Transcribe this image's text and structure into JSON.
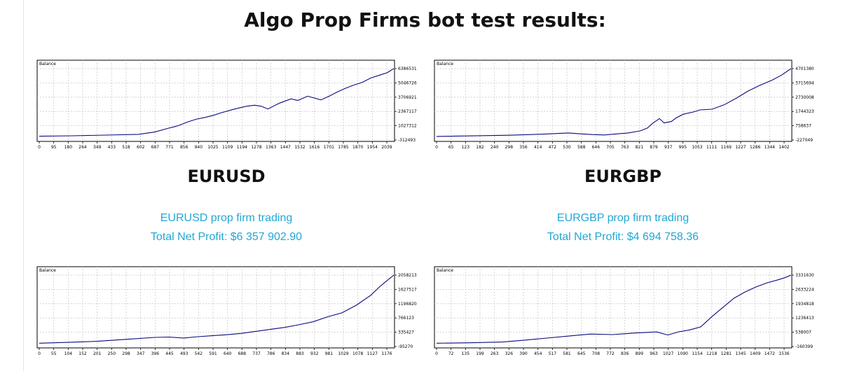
{
  "page": {
    "title": "Algo Prop Firms bot test results:"
  },
  "sections": [
    {
      "pair": "EURUSD",
      "line1": "EURUSD prop firm trading",
      "line2": "Total Net Profit: $6 357 902.90"
    },
    {
      "pair": "EURGBP",
      "line1": "EURGBP prop firm trading",
      "line2": "Total Net Profit: $4 694 758.36"
    }
  ],
  "colors": {
    "line": "#0a0a80",
    "accent_text": "#22a7d6",
    "grid": "#c9c9c9"
  },
  "chart_data": [
    {
      "type": "line",
      "title": "Balance",
      "x_ticks": [
        "0",
        "95",
        "180",
        "264",
        "349",
        "433",
        "518",
        "602",
        "687",
        "771",
        "856",
        "940",
        "1025",
        "1109",
        "1194",
        "1278",
        "1363",
        "1447",
        "1532",
        "1616",
        "1701",
        "1785",
        "1870",
        "1954",
        "2039"
      ],
      "y_ticks": [
        "6386531",
        "5046726",
        "3706921",
        "2367117",
        "1027312",
        "-312493"
      ],
      "ylim": [
        -312493,
        6386531
      ],
      "xlim": [
        0,
        2140
      ],
      "series": [
        {
          "x": [
            0,
            200,
            400,
            600,
            700,
            780,
            820,
            850,
            900,
            950,
            1000,
            1050,
            1100,
            1180,
            1250,
            1300,
            1340,
            1380,
            1450,
            1520,
            1560,
            1620,
            1700,
            1750,
            1800,
            1850,
            1900,
            1950,
            2000,
            2050,
            2100,
            2140
          ],
          "values": [
            40000,
            80000,
            150000,
            220000,
            450000,
            800000,
            950000,
            1100000,
            1400000,
            1650000,
            1800000,
            2000000,
            2250000,
            2600000,
            2850000,
            2950000,
            2850000,
            2600000,
            3150000,
            3550000,
            3400000,
            3800000,
            3450000,
            3800000,
            4200000,
            4550000,
            4850000,
            5100000,
            5500000,
            5750000,
            6000000,
            6386531
          ]
        }
      ],
      "grid": true
    },
    {
      "type": "line",
      "title": "Balance",
      "x_ticks": [
        "0",
        "65",
        "123",
        "182",
        "240",
        "298",
        "356",
        "414",
        "472",
        "530",
        "588",
        "646",
        "705",
        "763",
        "821",
        "879",
        "937",
        "995",
        "1053",
        "1111",
        "1169",
        "1227",
        "1286",
        "1344",
        "1402"
      ],
      "y_ticks": [
        "4701380",
        "3715694",
        "2730008",
        "1744323",
        "758637",
        "-227049"
      ],
      "ylim": [
        -227049,
        4701380
      ],
      "xlim": [
        0,
        1480
      ],
      "series": [
        {
          "x": [
            0,
            150,
            300,
            450,
            550,
            600,
            650,
            700,
            800,
            850,
            880,
            900,
            930,
            950,
            980,
            1000,
            1030,
            1070,
            1100,
            1150,
            1200,
            1250,
            1300,
            1350,
            1400,
            1440,
            1480
          ],
          "values": [
            20000,
            60000,
            100000,
            180000,
            260000,
            200000,
            150000,
            120000,
            260000,
            400000,
            600000,
            900000,
            1250000,
            950000,
            1050000,
            1300000,
            1550000,
            1700000,
            1850000,
            1900000,
            2200000,
            2650000,
            3150000,
            3550000,
            3900000,
            4250000,
            4701380
          ]
        }
      ],
      "grid": true
    },
    {
      "type": "line",
      "title": "Balance",
      "x_ticks": [
        "0",
        "55",
        "104",
        "152",
        "201",
        "250",
        "298",
        "347",
        "396",
        "445",
        "493",
        "542",
        "591",
        "640",
        "688",
        "737",
        "786",
        "834",
        "883",
        "932",
        "981",
        "1029",
        "1078",
        "1127",
        "1176"
      ],
      "y_ticks": [
        "2058213",
        "1627517",
        "1196820",
        "766123",
        "335427",
        "-95270"
      ],
      "ylim": [
        -95270,
        2058213
      ],
      "xlim": [
        0,
        1230
      ],
      "series": [
        {
          "x": [
            0,
            100,
            200,
            300,
            400,
            450,
            500,
            550,
            600,
            650,
            700,
            750,
            800,
            850,
            900,
            950,
            1000,
            1050,
            1100,
            1150,
            1180,
            1200,
            1230
          ],
          "values": [
            5000,
            30000,
            60000,
            120000,
            180000,
            190000,
            160000,
            200000,
            230000,
            260000,
            300000,
            360000,
            420000,
            480000,
            560000,
            650000,
            800000,
            920000,
            1150000,
            1450000,
            1700000,
            1850000,
            2058213
          ]
        }
      ],
      "grid": true
    },
    {
      "type": "line",
      "title": "Balance",
      "x_ticks": [
        "0",
        "72",
        "135",
        "199",
        "263",
        "326",
        "390",
        "454",
        "517",
        "581",
        "645",
        "708",
        "772",
        "836",
        "899",
        "963",
        "1027",
        "1090",
        "1154",
        "1218",
        "1281",
        "1345",
        "1409",
        "1472",
        "1536"
      ],
      "y_ticks": [
        "3331630",
        "2633224",
        "1934818",
        "1236413",
        "538007",
        "-160399"
      ],
      "ylim": [
        -160399,
        3331630
      ],
      "xlim": [
        0,
        1610
      ],
      "series": [
        {
          "x": [
            0,
            150,
            300,
            400,
            500,
            600,
            700,
            800,
            900,
            1000,
            1050,
            1100,
            1150,
            1200,
            1250,
            1300,
            1350,
            1400,
            1450,
            1500,
            1550,
            1580,
            1610
          ],
          "values": [
            0,
            20000,
            60000,
            150000,
            250000,
            350000,
            450000,
            420000,
            500000,
            550000,
            400000,
            560000,
            650000,
            800000,
            1300000,
            1750000,
            2200000,
            2500000,
            2750000,
            2950000,
            3100000,
            3200000,
            3331630
          ]
        }
      ],
      "grid": true
    }
  ]
}
